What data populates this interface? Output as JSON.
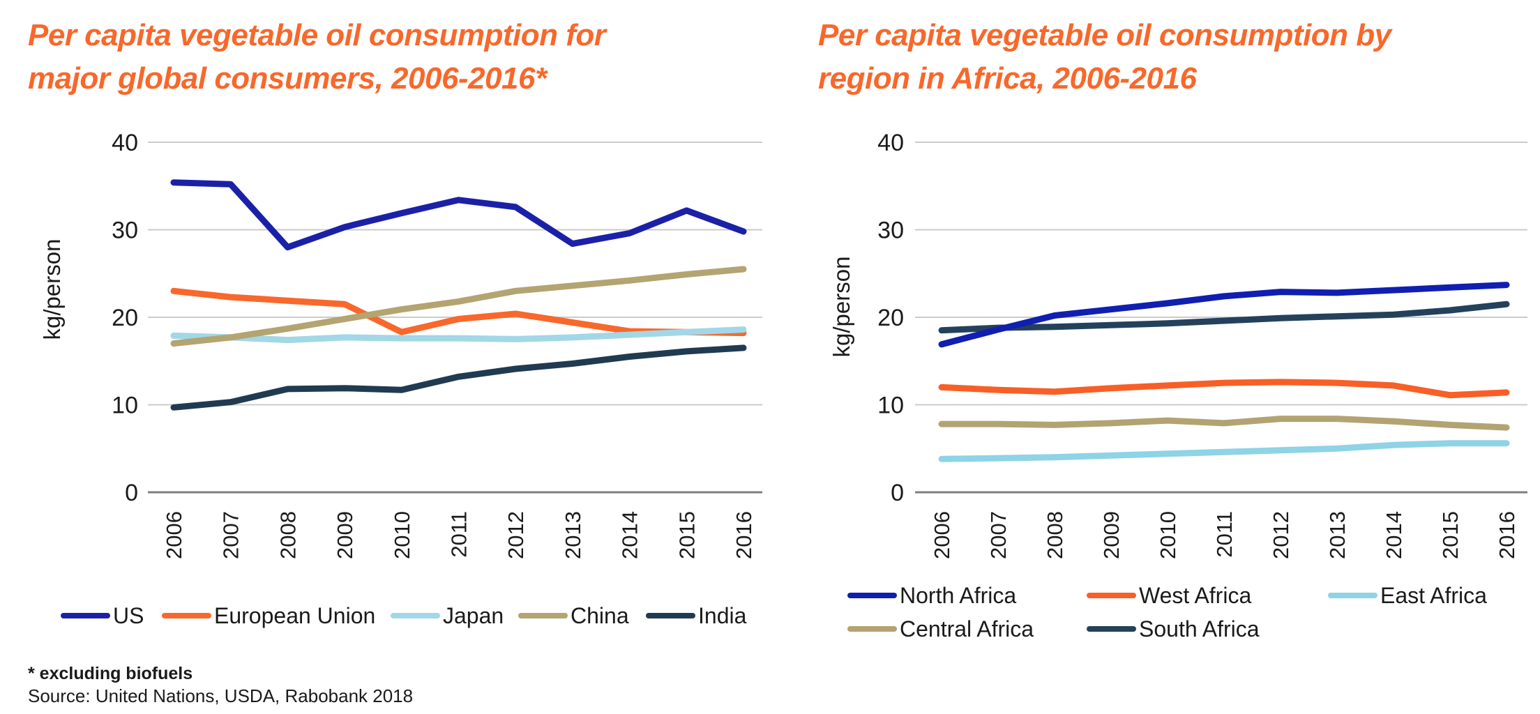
{
  "page": {
    "background": "#ffffff",
    "title_color": "#f8682b"
  },
  "footnote": {
    "note": "* excluding biofuels",
    "source": "Source: United Nations, USDA, Rabobank 2018"
  },
  "chart_data": [
    {
      "type": "line",
      "title_lines": [
        "Per capita vegetable oil consumption for",
        "major global consumers, 2006-2016*"
      ],
      "ylabel": "kg/person",
      "x": [
        2006,
        2007,
        2008,
        2009,
        2010,
        2011,
        2012,
        2013,
        2014,
        2015,
        2016
      ],
      "ylim": [
        0,
        40
      ],
      "yticks": [
        0,
        10,
        20,
        30,
        40
      ],
      "grid": true,
      "legend_position": "bottom",
      "series": [
        {
          "name": "US",
          "color": "#1b21a7",
          "values": [
            35.4,
            35.2,
            28.0,
            30.3,
            31.9,
            33.4,
            32.6,
            28.4,
            29.6,
            32.2,
            29.8
          ]
        },
        {
          "name": "European Union",
          "color": "#f8682c",
          "values": [
            23.0,
            22.3,
            21.9,
            21.5,
            18.3,
            19.8,
            20.4,
            19.4,
            18.4,
            18.3,
            18.2
          ]
        },
        {
          "name": "Japan",
          "color": "#a2d7e8",
          "values": [
            17.9,
            17.7,
            17.4,
            17.7,
            17.6,
            17.6,
            17.5,
            17.7,
            18.0,
            18.3,
            18.6
          ]
        },
        {
          "name": "China",
          "color": "#b4a471",
          "values": [
            17.0,
            17.7,
            18.7,
            19.8,
            20.9,
            21.8,
            23.0,
            23.6,
            24.2,
            24.9,
            25.5
          ]
        },
        {
          "name": "India",
          "color": "#203a51",
          "values": [
            9.7,
            10.3,
            11.8,
            11.9,
            11.7,
            13.2,
            14.1,
            14.7,
            15.5,
            16.1,
            16.5
          ]
        }
      ]
    },
    {
      "type": "line",
      "title_lines": [
        "Per capita vegetable oil consumption by",
        "region in Africa, 2006-2016"
      ],
      "ylabel": "kg/person",
      "x": [
        2006,
        2007,
        2008,
        2009,
        2010,
        2011,
        2012,
        2013,
        2014,
        2015,
        2016
      ],
      "ylim": [
        0,
        40
      ],
      "yticks": [
        0,
        10,
        20,
        30,
        40
      ],
      "grid": true,
      "legend_position": "bottom",
      "series": [
        {
          "name": "North Africa",
          "color": "#101fb0",
          "values": [
            16.9,
            18.6,
            20.2,
            20.9,
            21.6,
            22.4,
            22.9,
            22.8,
            23.1,
            23.4,
            23.7
          ]
        },
        {
          "name": "West Africa",
          "color": "#f85f26",
          "values": [
            12.0,
            11.7,
            11.5,
            11.9,
            12.2,
            12.5,
            12.6,
            12.5,
            12.2,
            11.1,
            11.4
          ]
        },
        {
          "name": "East Africa",
          "color": "#8ed3e6",
          "values": [
            3.8,
            3.9,
            4.0,
            4.2,
            4.4,
            4.6,
            4.8,
            5.0,
            5.4,
            5.6,
            5.6
          ]
        },
        {
          "name": "Central Africa",
          "color": "#b3a372",
          "values": [
            7.8,
            7.8,
            7.7,
            7.9,
            8.2,
            7.9,
            8.4,
            8.4,
            8.1,
            7.7,
            7.4
          ]
        },
        {
          "name": "South Africa",
          "color": "#24415c",
          "values": [
            18.5,
            18.8,
            18.9,
            19.1,
            19.3,
            19.6,
            19.9,
            20.1,
            20.3,
            20.8,
            21.5
          ]
        }
      ]
    }
  ]
}
